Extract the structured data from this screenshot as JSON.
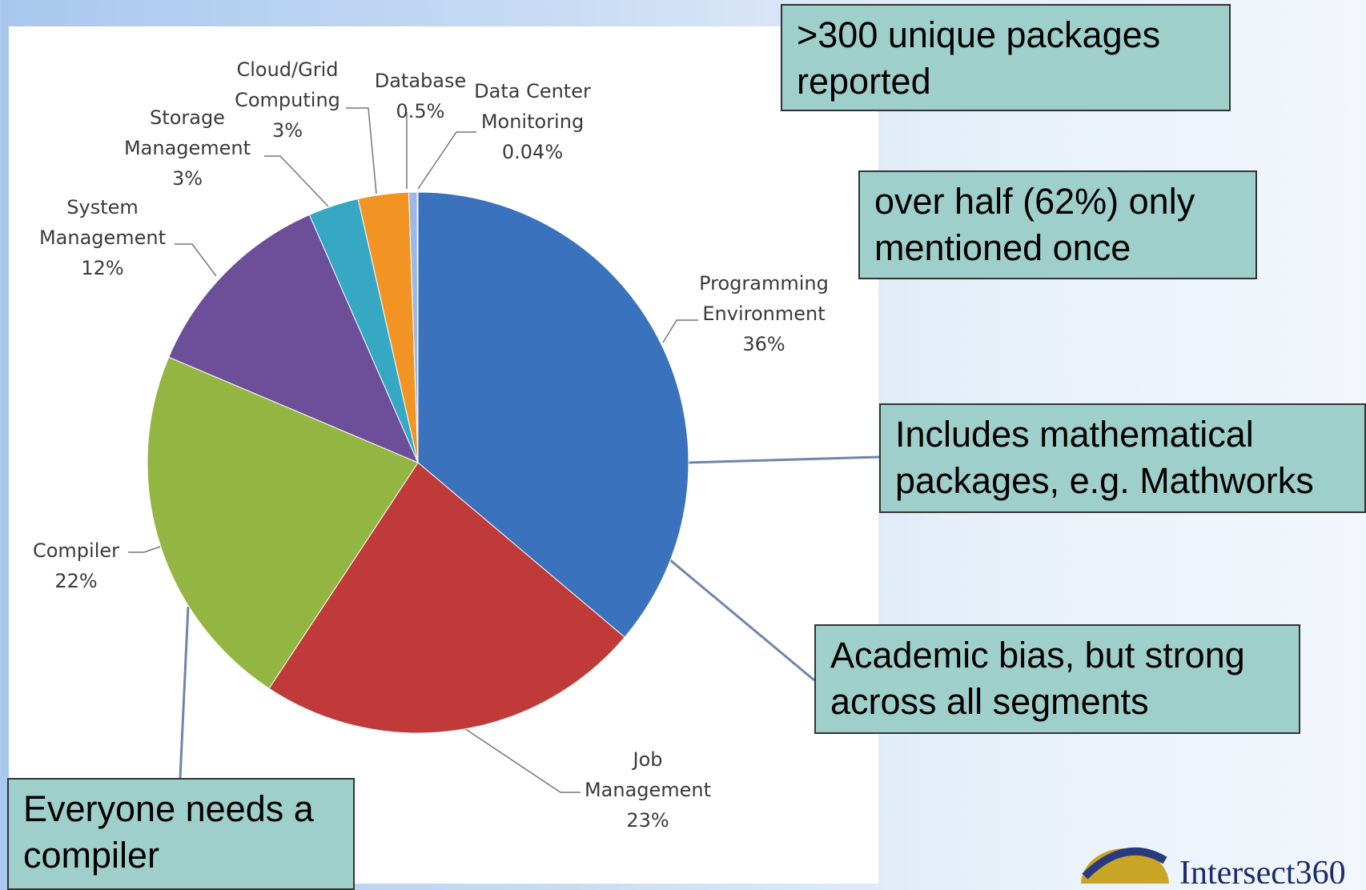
{
  "chart_data": {
    "type": "pie",
    "categories": [
      "Programming Environment",
      "Job Management",
      "Compiler",
      "System Management",
      "Storage Management",
      "Cloud/Grid Computing",
      "Database",
      "Data Center Monitoring"
    ],
    "values": [
      36,
      23,
      22,
      12,
      3,
      3,
      0.5,
      0.04
    ],
    "value_labels": [
      "36%",
      "23%",
      "22%",
      "12%",
      "3%",
      "3%",
      "0.5%",
      "0.04%"
    ],
    "colors": [
      "#3b72bd",
      "#bf3a38",
      "#93b541",
      "#6d4e98",
      "#36a8c4",
      "#f29424",
      "#9db8e4",
      "#7f9fcf"
    ]
  },
  "annotations": [
    ">300 unique packages reported",
    "over half (62%) only mentioned once",
    "Includes mathematical packages, e.g. Mathworks",
    "Academic bias, but strong across all segments",
    "Everyone needs a compiler"
  ],
  "logo": "Intersect360"
}
